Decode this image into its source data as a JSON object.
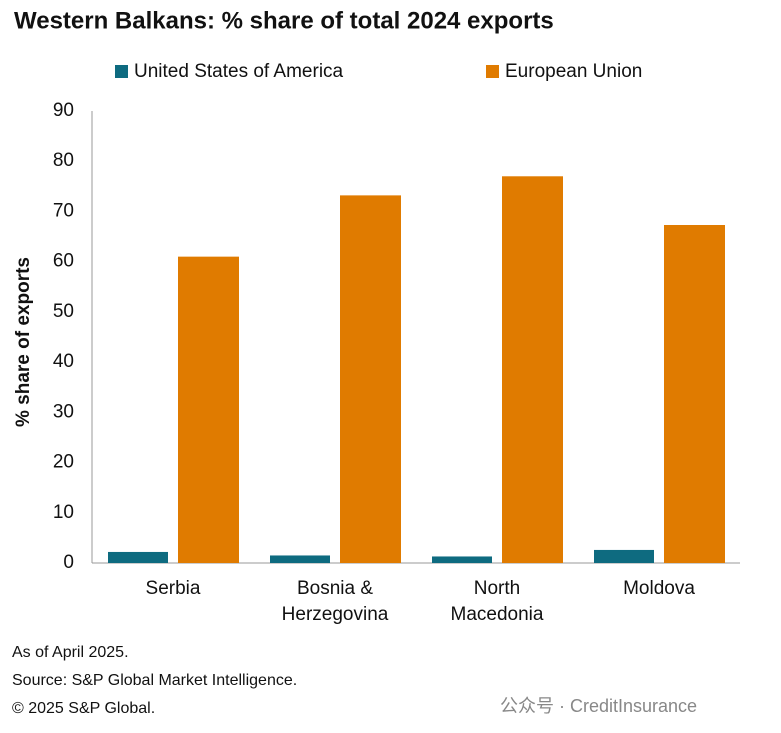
{
  "chart_data": {
    "type": "bar",
    "title": "Western Balkans: % share of total 2024 exports",
    "y_label": "% share of exports",
    "categories": [
      "Serbia",
      "Bosnia & Herzegovina",
      "North Macedonia",
      "Moldova"
    ],
    "series": [
      {
        "name": "United States of America",
        "color": "#0e6b80",
        "values": [
          2.2,
          1.5,
          1.3,
          2.6
        ]
      },
      {
        "name": "European Union",
        "color": "#e07b00",
        "values": [
          61,
          73.2,
          77,
          67.3
        ]
      }
    ],
    "ylim": [
      0,
      90
    ],
    "yticks": [
      0,
      10,
      20,
      30,
      40,
      50,
      60,
      70,
      80,
      90
    ],
    "grid": false,
    "footnotes": [
      "As of April 2025.",
      "Source: S&P Global Market Intelligence.",
      "© 2025 S&P Global."
    ],
    "watermark": "公众号 · CreditInsurance"
  }
}
